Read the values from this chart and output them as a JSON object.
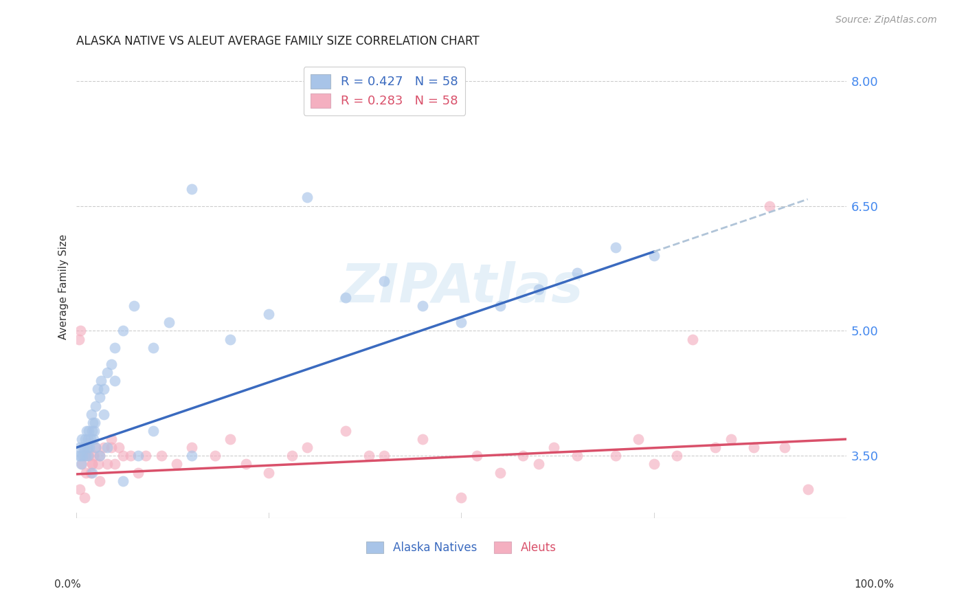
{
  "title": "ALASKA NATIVE VS ALEUT AVERAGE FAMILY SIZE CORRELATION CHART",
  "source": "Source: ZipAtlas.com",
  "ylabel": "Average Family Size",
  "right_yticks": [
    3.5,
    5.0,
    6.5,
    8.0
  ],
  "watermark": "ZIPAtlas",
  "legend_blue_r": "R = 0.427",
  "legend_blue_n": "N = 58",
  "legend_pink_r": "R = 0.283",
  "legend_pink_n": "N = 58",
  "blue_scatter_color": "#a8c4e8",
  "pink_scatter_color": "#f4afc0",
  "blue_line_color": "#3a6abf",
  "pink_line_color": "#d9506a",
  "dashed_line_color": "#b0c4d8",
  "xlim": [
    0,
    100
  ],
  "ylim": [
    2.75,
    8.3
  ],
  "background_color": "#ffffff",
  "grid_color": "#cccccc",
  "blue_line_x0": 0,
  "blue_line_y0": 3.6,
  "blue_line_x1": 75,
  "blue_line_y1": 5.95,
  "blue_dash_x0": 75,
  "blue_dash_y0": 5.95,
  "blue_dash_x1": 95,
  "blue_dash_y1": 6.58,
  "pink_line_x0": 0,
  "pink_line_y0": 3.28,
  "pink_line_x1": 100,
  "pink_line_y1": 3.7,
  "an_x": [
    0.4,
    0.5,
    0.7,
    0.8,
    1.0,
    1.1,
    1.2,
    1.3,
    1.4,
    1.5,
    1.6,
    1.7,
    1.8,
    1.9,
    2.0,
    2.1,
    2.2,
    2.3,
    2.4,
    2.5,
    2.7,
    3.0,
    3.2,
    3.5,
    4.0,
    4.5,
    5.0,
    6.0,
    7.5,
    10.0,
    12.0,
    15.0,
    20.0,
    25.0,
    30.0,
    35.0,
    40.0,
    45.0,
    50.0,
    55.0,
    60.0,
    65.0,
    70.0,
    75.0,
    0.3,
    0.6,
    0.9,
    1.5,
    2.0,
    2.5,
    3.0,
    3.5,
    4.0,
    5.0,
    6.0,
    8.0,
    10.0,
    15.0
  ],
  "an_y": [
    3.6,
    3.5,
    3.7,
    3.5,
    3.6,
    3.7,
    3.5,
    3.8,
    3.6,
    3.7,
    3.8,
    3.6,
    3.7,
    4.0,
    3.8,
    3.9,
    3.7,
    3.8,
    3.9,
    4.1,
    4.3,
    4.2,
    4.4,
    4.3,
    4.5,
    4.6,
    4.8,
    5.0,
    5.3,
    4.8,
    5.1,
    6.7,
    4.9,
    5.2,
    6.6,
    5.4,
    5.6,
    5.3,
    5.1,
    5.3,
    5.5,
    5.7,
    6.0,
    5.9,
    3.5,
    3.4,
    3.6,
    3.5,
    3.3,
    3.6,
    3.5,
    4.0,
    3.6,
    4.4,
    3.2,
    3.5,
    3.8,
    3.5
  ],
  "al_x": [
    0.3,
    0.5,
    0.7,
    1.0,
    1.2,
    1.4,
    1.6,
    1.8,
    2.0,
    2.2,
    2.5,
    2.8,
    3.0,
    3.5,
    4.0,
    4.5,
    5.0,
    5.5,
    6.0,
    7.0,
    8.0,
    9.0,
    11.0,
    13.0,
    15.0,
    18.0,
    20.0,
    22.0,
    25.0,
    28.0,
    30.0,
    35.0,
    38.0,
    40.0,
    45.0,
    50.0,
    52.0,
    55.0,
    58.0,
    60.0,
    62.0,
    65.0,
    70.0,
    73.0,
    75.0,
    78.0,
    80.0,
    83.0,
    85.0,
    88.0,
    90.0,
    92.0,
    95.0,
    0.4,
    1.0,
    2.0,
    3.0,
    4.5
  ],
  "al_y": [
    4.9,
    5.0,
    3.4,
    3.5,
    3.3,
    3.6,
    3.5,
    3.3,
    3.4,
    3.5,
    3.6,
    3.4,
    3.5,
    3.6,
    3.4,
    3.7,
    3.4,
    3.6,
    3.5,
    3.5,
    3.3,
    3.5,
    3.5,
    3.4,
    3.6,
    3.5,
    3.7,
    3.4,
    3.3,
    3.5,
    3.6,
    3.8,
    3.5,
    3.5,
    3.7,
    3.0,
    3.5,
    3.3,
    3.5,
    3.4,
    3.6,
    3.5,
    3.5,
    3.7,
    3.4,
    3.5,
    4.9,
    3.6,
    3.7,
    3.6,
    6.5,
    3.6,
    3.1,
    3.1,
    3.0,
    3.4,
    3.2,
    3.6
  ]
}
